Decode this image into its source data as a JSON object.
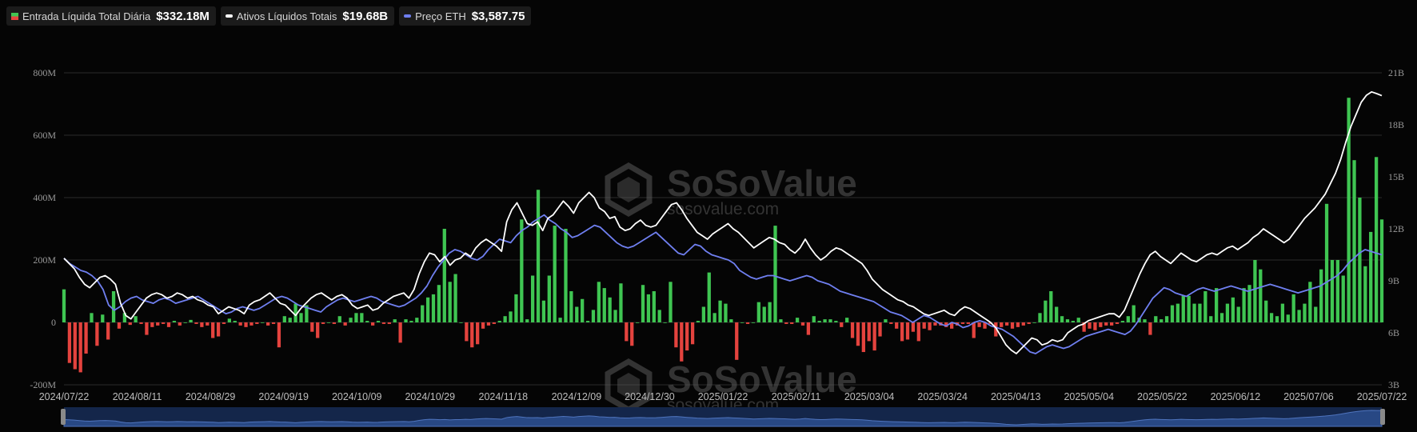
{
  "legend": [
    {
      "label": "Entrada Líquida Total Diária",
      "value": "$332.18M",
      "swatch": "split"
    },
    {
      "label": "Ativos Líquidos Totais",
      "value": "$19.68B",
      "swatch": "line",
      "color": "#ffffff"
    },
    {
      "label": "Preço ETH",
      "value": "$3,587.75",
      "swatch": "line",
      "color": "#6f7ff0"
    }
  ],
  "watermark": {
    "brand": "SoSoValue",
    "url": "sosovalue.com"
  },
  "colors": {
    "positive": "#3fc552",
    "negative": "#e4433e",
    "net_assets": "#ffffff",
    "eth_price": "#6f7ff0",
    "grid": "#2a2a2a",
    "navigator": "#1b2f55"
  },
  "chart_data": {
    "type": "bar",
    "left_axis": {
      "range": [
        -200,
        800
      ],
      "unit": "M",
      "tick_labels": [
        "-200M",
        "0",
        "200M",
        "400M",
        "600M",
        "800M"
      ]
    },
    "right_axis": {
      "range": [
        3,
        21
      ],
      "unit": "B",
      "tick_labels": [
        "3B",
        "6B",
        "9B",
        "12B",
        "15B",
        "18B",
        "21B"
      ]
    },
    "x_tick_labels": [
      "2024/07/22",
      "2024/08/11",
      "2024/08/29",
      "2024/09/19",
      "2024/10/09",
      "2024/10/29",
      "2024/11/18",
      "2024/12/09",
      "2024/12/30",
      "2025/01/22",
      "2025/02/11",
      "2025/03/04",
      "2025/03/24",
      "2025/04/13",
      "2025/05/04",
      "2025/05/22",
      "2025/06/12",
      "2025/07/06",
      "2025/07/22"
    ],
    "grid": true,
    "legend_position": "top-left",
    "series": [
      {
        "name": "Entrada Líquida Total Diária",
        "kind": "bar",
        "axis": "left",
        "unit": "M",
        "values": [
          106,
          -130,
          -150,
          -160,
          -100,
          30,
          -75,
          25,
          -55,
          100,
          -20,
          30,
          -8,
          20,
          -5,
          -40,
          -15,
          -10,
          -5,
          -15,
          5,
          -10,
          0,
          8,
          -5,
          -15,
          -10,
          -50,
          -45,
          -5,
          12,
          5,
          -10,
          -15,
          -10,
          -5,
          0,
          -10,
          -5,
          -80,
          20,
          15,
          60,
          30,
          55,
          -30,
          -50,
          -5,
          0,
          -5,
          20,
          -10,
          15,
          30,
          30,
          5,
          -10,
          5,
          -5,
          -5,
          10,
          -65,
          10,
          5,
          15,
          55,
          80,
          90,
          120,
          300,
          130,
          155,
          0,
          -60,
          -80,
          -70,
          -20,
          -10,
          -5,
          5,
          20,
          35,
          90,
          330,
          10,
          150,
          425,
          70,
          150,
          310,
          15,
          300,
          100,
          50,
          75,
          5,
          40,
          130,
          110,
          80,
          40,
          125,
          -60,
          -75,
          0,
          120,
          90,
          100,
          40,
          0,
          130,
          -80,
          -125,
          -90,
          -70,
          5,
          50,
          160,
          30,
          70,
          60,
          10,
          -120,
          0,
          -5,
          0,
          65,
          50,
          65,
          310,
          10,
          -5,
          -5,
          15,
          -10,
          -40,
          20,
          5,
          10,
          10,
          5,
          -15,
          15,
          -50,
          -75,
          -95,
          -60,
          -90,
          -45,
          10,
          -5,
          -20,
          -60,
          -55,
          -30,
          -60,
          -20,
          -25,
          -10,
          -10,
          -15,
          -20,
          -10,
          -5,
          -5,
          -50,
          -15,
          -20,
          -5,
          -45,
          -15,
          -10,
          -20,
          -15,
          -10,
          -5,
          0,
          30,
          70,
          100,
          50,
          20,
          10,
          5,
          15,
          -30,
          -20,
          -25,
          -15,
          -10,
          -10,
          -5,
          5,
          20,
          55,
          15,
          10,
          -40,
          20,
          10,
          20,
          55,
          60,
          85,
          85,
          60,
          60,
          100,
          20,
          110,
          30,
          60,
          80,
          50,
          110,
          120,
          200,
          170,
          70,
          30,
          20,
          60,
          25,
          90,
          40,
          60,
          130,
          50,
          170,
          380,
          200,
          200,
          150,
          720,
          520,
          400,
          180,
          290,
          530,
          330
        ]
      },
      {
        "name": "Ativos Líquidos Totais",
        "kind": "line",
        "axis": "right",
        "unit": "B",
        "values": [
          10.3,
          10.0,
          9.7,
          9.2,
          8.8,
          8.6,
          8.9,
          9.2,
          9.3,
          9.1,
          8.8,
          7.7,
          7.0,
          6.8,
          7.2,
          7.6,
          8.0,
          8.2,
          8.3,
          8.2,
          8.0,
          8.1,
          8.3,
          8.2,
          8.0,
          8.1,
          7.9,
          7.8,
          7.6,
          7.5,
          7.1,
          7.3,
          7.5,
          7.4,
          7.3,
          7.1,
          7.6,
          7.8,
          7.9,
          8.1,
          8.3,
          8.0,
          7.7,
          7.6,
          7.3,
          7.0,
          7.4,
          7.7,
          8.0,
          8.2,
          8.3,
          8.1,
          7.9,
          8.1,
          8.2,
          8.0,
          7.6,
          7.4,
          7.5,
          7.6,
          7.3,
          7.4,
          7.7,
          7.9,
          8.1,
          8.2,
          8.3,
          8.0,
          8.5,
          9.4,
          10.1,
          10.6,
          10.5,
          10.1,
          10.4,
          9.9,
          10.2,
          10.3,
          10.6,
          10.4,
          10.9,
          11.2,
          11.4,
          11.2,
          11.0,
          10.7,
          12.4,
          13.1,
          13.5,
          12.9,
          12.3,
          12.2,
          12.4,
          11.9,
          12.6,
          12.8,
          13.2,
          13.6,
          13.3,
          12.9,
          13.5,
          13.8,
          14.1,
          13.8,
          13.2,
          13.0,
          12.6,
          12.7,
          12.1,
          11.9,
          12.0,
          12.3,
          12.5,
          12.2,
          12.1,
          12.2,
          12.6,
          13.0,
          13.4,
          13.5,
          13.1,
          12.6,
          12.2,
          11.8,
          11.6,
          11.4,
          11.7,
          11.9,
          12.1,
          12.3,
          12.0,
          11.8,
          11.5,
          11.2,
          10.9,
          11.1,
          11.3,
          11.5,
          11.4,
          11.2,
          11.1,
          10.8,
          10.6,
          10.9,
          11.4,
          10.9,
          10.5,
          10.2,
          10.4,
          10.7,
          10.9,
          10.8,
          10.6,
          10.4,
          10.2,
          10.0,
          9.6,
          9.1,
          8.8,
          8.5,
          8.3,
          8.1,
          7.9,
          7.8,
          7.6,
          7.5,
          7.3,
          7.1,
          7.0,
          7.1,
          7.2,
          7.3,
          7.1,
          7.0,
          7.3,
          7.5,
          7.4,
          7.2,
          7.0,
          6.8,
          6.6,
          6.3,
          5.8,
          5.3,
          5.0,
          4.8,
          5.1,
          5.4,
          5.7,
          5.6,
          5.3,
          5.4,
          5.6,
          5.5,
          5.6,
          6.0,
          6.2,
          6.4,
          6.5,
          6.7,
          6.8,
          6.9,
          7.0,
          7.1,
          7.1,
          6.9,
          7.3,
          8.0,
          8.7,
          9.4,
          10.0,
          10.5,
          10.7,
          10.4,
          10.2,
          10.0,
          10.3,
          10.6,
          10.4,
          10.2,
          10.1,
          10.3,
          10.5,
          10.6,
          10.5,
          10.7,
          10.9,
          11.0,
          10.8,
          11.0,
          11.2,
          11.5,
          11.7,
          12.0,
          11.8,
          11.6,
          11.4,
          11.2,
          11.4,
          11.8,
          12.2,
          12.6,
          12.9,
          13.2,
          13.6,
          14.0,
          14.6,
          15.2,
          16.0,
          17.0,
          17.9,
          18.6,
          19.3,
          19.7,
          19.9,
          19.8,
          19.68
        ]
      },
      {
        "name": "Preço ETH",
        "kind": "line",
        "axis": "right",
        "unit": "B",
        "values": [
          10.3,
          10.0,
          9.8,
          9.6,
          9.5,
          9.3,
          9.0,
          8.5,
          7.6,
          7.3,
          7.5,
          7.8,
          8.0,
          8.1,
          7.9,
          7.8,
          7.7,
          7.9,
          8.0,
          7.9,
          7.7,
          7.8,
          7.9,
          8.0,
          8.1,
          7.9,
          7.7,
          7.5,
          7.3,
          7.1,
          7.2,
          7.4,
          7.5,
          7.4,
          7.3,
          7.4,
          7.6,
          7.8,
          8.0,
          8.1,
          8.0,
          7.8,
          7.6,
          7.5,
          7.4,
          7.3,
          7.2,
          7.5,
          7.7,
          7.9,
          8.0,
          7.9,
          7.8,
          7.9,
          8.0,
          8.1,
          8.0,
          7.8,
          7.7,
          7.6,
          7.5,
          7.6,
          7.8,
          8.0,
          8.3,
          8.7,
          9.3,
          9.8,
          10.2,
          10.6,
          10.8,
          10.7,
          10.5,
          10.3,
          10.2,
          10.4,
          10.8,
          11.1,
          11.4,
          11.3,
          11.2,
          11.6,
          11.9,
          12.1,
          12.4,
          12.6,
          12.8,
          12.5,
          12.3,
          12.0,
          11.8,
          11.5,
          11.6,
          11.8,
          12.0,
          12.2,
          12.1,
          11.8,
          11.5,
          11.2,
          11.0,
          10.9,
          11.0,
          11.2,
          11.4,
          11.6,
          11.8,
          11.5,
          11.2,
          10.9,
          10.6,
          10.5,
          10.8,
          11.1,
          11.0,
          10.7,
          10.5,
          10.4,
          10.3,
          10.2,
          10.0,
          9.6,
          9.4,
          9.2,
          9.1,
          9.2,
          9.3,
          9.3,
          9.2,
          9.1,
          9.0,
          9.1,
          9.2,
          9.3,
          9.2,
          9.0,
          8.9,
          8.8,
          8.6,
          8.4,
          8.3,
          8.2,
          8.1,
          8.0,
          7.9,
          7.8,
          7.6,
          7.4,
          7.2,
          7.1,
          7.0,
          6.8,
          6.6,
          6.8,
          7.0,
          6.9,
          6.7,
          6.5,
          6.4,
          6.6,
          6.5,
          6.3,
          6.4,
          6.6,
          6.7,
          6.6,
          6.4,
          6.3,
          6.2,
          6.0,
          5.8,
          5.5,
          5.2,
          4.9,
          4.8,
          5.0,
          5.2,
          5.3,
          5.2,
          5.1,
          5.2,
          5.4,
          5.6,
          5.8,
          5.9,
          6.0,
          6.1,
          6.2,
          6.1,
          6.0,
          5.9,
          6.1,
          6.5,
          7.0,
          7.5,
          8.0,
          8.3,
          8.6,
          8.5,
          8.3,
          8.2,
          8.1,
          8.3,
          8.5,
          8.6,
          8.5,
          8.4,
          8.5,
          8.6,
          8.7,
          8.6,
          8.5,
          8.4,
          8.5,
          8.6,
          8.7,
          8.8,
          8.7,
          8.6,
          8.5,
          8.4,
          8.3,
          8.4,
          8.5,
          8.6,
          8.7,
          8.9,
          9.1,
          9.3,
          9.6,
          10.0,
          10.3,
          10.6,
          10.8,
          10.7,
          10.6,
          10.5
        ]
      }
    ]
  }
}
